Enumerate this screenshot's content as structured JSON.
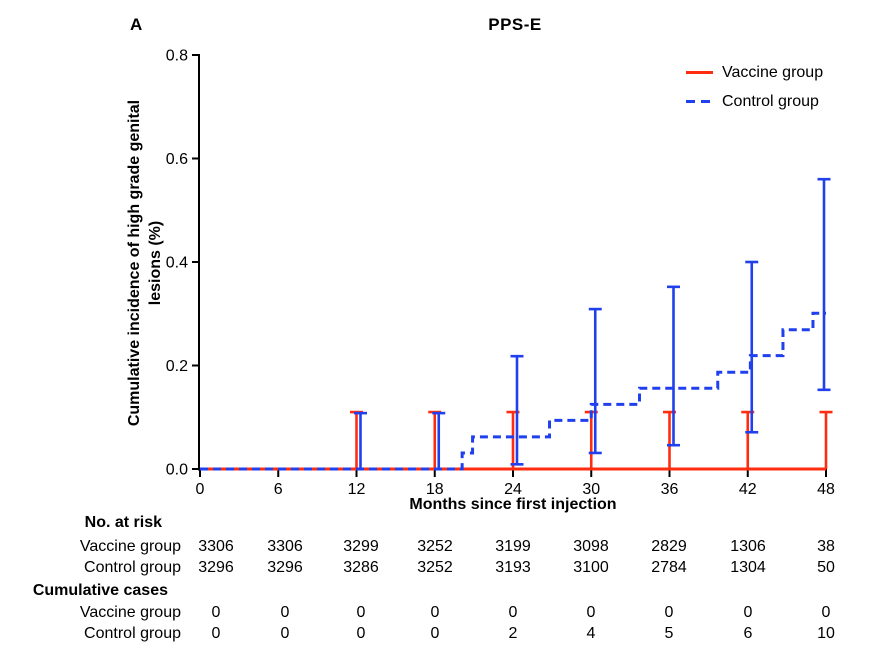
{
  "panel_label": "A",
  "title": "PPS-E",
  "legend": {
    "position": "top-right",
    "items": [
      {
        "label": "Vaccine group",
        "color": "#ff2d10",
        "style": "solid"
      },
      {
        "label": "Control group",
        "color": "#2040ee",
        "style": "dashed"
      }
    ]
  },
  "chart_data": {
    "type": "line",
    "subtype": "kaplan-meier-step-with-error-bars",
    "title": "PPS-E",
    "xlabel": "Months since first injection",
    "ylabel": "Cumulative incidence of high grade genital lesions (%)",
    "ylabel_lines": [
      "Cumulative incidence of high grade genital",
      "lesions (%)"
    ],
    "xlim": [
      0,
      48
    ],
    "ylim": [
      0,
      0.8
    ],
    "xticks": [
      0,
      6,
      12,
      18,
      24,
      30,
      36,
      42,
      48
    ],
    "xtick_labels": [
      "0",
      "6",
      "12",
      "18",
      "24",
      "30",
      "36",
      "42",
      "48"
    ],
    "yticks": [
      0,
      0.2,
      0.4,
      0.6,
      0.8
    ],
    "ytick_labels": [
      "0.0",
      "0.2",
      "0.4",
      "0.6",
      "0.8"
    ],
    "grid": false,
    "legend_position": "top-right",
    "series": [
      {
        "name": "Vaccine group",
        "color": "#ff2d10",
        "line_style": "solid",
        "step_points": [
          [
            0,
            0
          ],
          [
            48,
            0
          ]
        ],
        "error_bars": [
          {
            "x": 12,
            "lo": 0,
            "hi": 0.11
          },
          {
            "x": 18,
            "lo": 0,
            "hi": 0.11
          },
          {
            "x": 24,
            "lo": 0,
            "hi": 0.11
          },
          {
            "x": 30,
            "lo": 0,
            "hi": 0.11
          },
          {
            "x": 36,
            "lo": 0,
            "hi": 0.11
          },
          {
            "x": 42,
            "lo": 0,
            "hi": 0.11
          },
          {
            "x": 48,
            "lo": 0,
            "hi": 0.11
          }
        ]
      },
      {
        "name": "Control group",
        "color": "#2040ee",
        "line_style": "dashed",
        "step_points": [
          [
            0,
            0
          ],
          [
            20.1,
            0.031
          ],
          [
            20.9,
            0.062
          ],
          [
            26.8,
            0.094
          ],
          [
            30,
            0.125
          ],
          [
            33.7,
            0.156
          ],
          [
            39.7,
            0.187
          ],
          [
            42.2,
            0.219
          ],
          [
            44.7,
            0.269
          ],
          [
            47,
            0.301
          ],
          [
            48,
            0.301
          ]
        ],
        "error_bars": [
          {
            "x": 12,
            "lo": 0,
            "hi": 0.108
          },
          {
            "x": 18,
            "lo": 0,
            "hi": 0.108
          },
          {
            "x": 24,
            "lo": 0.009,
            "hi": 0.218
          },
          {
            "x": 30,
            "lo": 0.031,
            "hi": 0.309
          },
          {
            "x": 36,
            "lo": 0.046,
            "hi": 0.352
          },
          {
            "x": 42,
            "lo": 0.071,
            "hi": 0.4
          },
          {
            "x": 48,
            "lo": 0.153,
            "hi": 0.56
          }
        ]
      }
    ]
  },
  "risk_table": {
    "columns_months": [
      0,
      6,
      12,
      18,
      24,
      30,
      36,
      42,
      48
    ],
    "sections": [
      {
        "header": "No. at risk",
        "rows": [
          {
            "label": "Vaccine group",
            "values": [
              "3306",
              "3306",
              "3299",
              "3252",
              "3199",
              "3098",
              "2829",
              "1306",
              "38"
            ]
          },
          {
            "label": "Control group",
            "values": [
              "3296",
              "3296",
              "3286",
              "3252",
              "3193",
              "3100",
              "2784",
              "1304",
              "50"
            ]
          }
        ]
      },
      {
        "header": "Cumulative cases",
        "rows": [
          {
            "label": "Vaccine group",
            "values": [
              "0",
              "0",
              "0",
              "0",
              "0",
              "0",
              "0",
              "0",
              "0"
            ]
          },
          {
            "label": "Control group",
            "values": [
              "0",
              "0",
              "0",
              "0",
              "2",
              "4",
              "5",
              "6",
              "10"
            ]
          }
        ]
      }
    ]
  }
}
